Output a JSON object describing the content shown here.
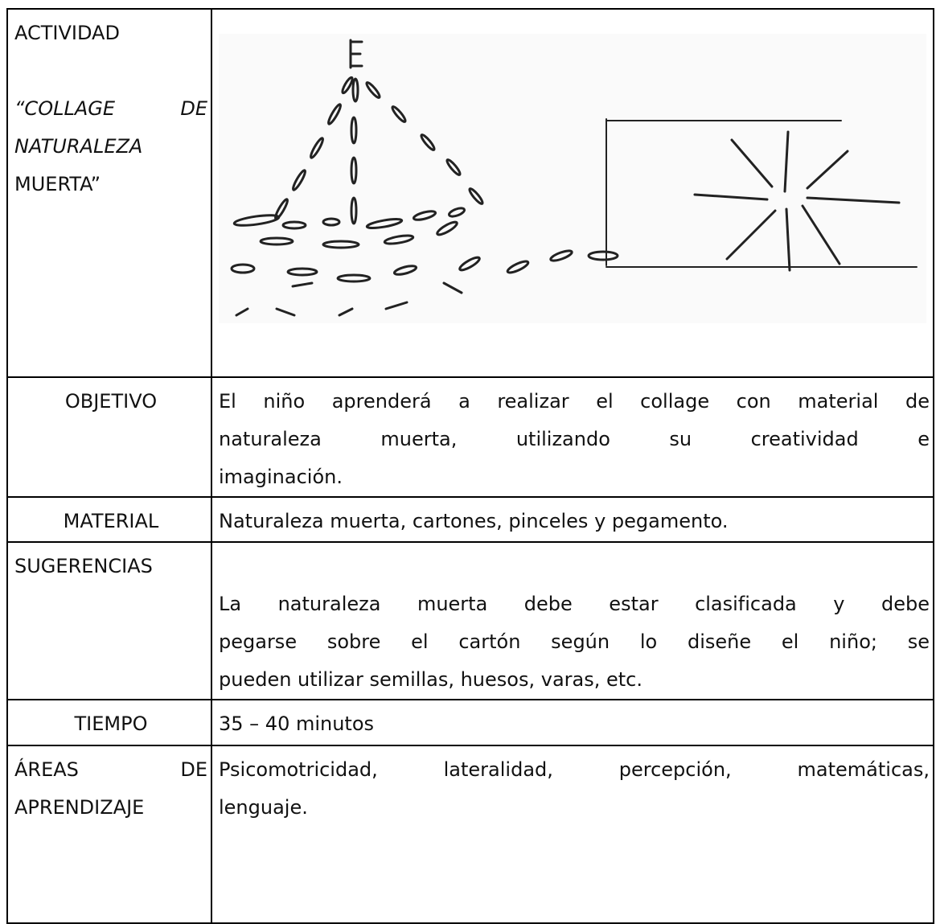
{
  "actividad": {
    "label": "ACTIVIDAD",
    "title_line1": "“COLLAGE DE",
    "title_line2": "NATURALEZA",
    "title_line3": "MUERTA”"
  },
  "objetivo": {
    "label": "OBJETIVO",
    "lines": [
      "El niño  aprenderá a realizar el collage con material de",
      "naturaleza muerta, utilizando su creatividad e",
      "imaginación."
    ]
  },
  "material": {
    "label": "MATERIAL",
    "text": "Naturaleza muerta, cartones, pinceles y pegamento."
  },
  "sugerencias": {
    "label": "SUGERENCIAS",
    "lines": [
      "La naturaleza muerta debe estar clasificada y debe",
      "pegarse sobre el cartón según lo diseñe el niño; se",
      "pueden utilizar semillas, huesos, varas, etc."
    ]
  },
  "tiempo": {
    "label": "TIEMPO",
    "text": "35 – 40 minutos"
  },
  "areas": {
    "label_line1": "ÁREAS DE",
    "label_line2": "APRENDIZAJE",
    "lines": [
      "Psicomotricidad, lateralidad, percepción, matemáticas,",
      "lenguaje."
    ]
  }
}
